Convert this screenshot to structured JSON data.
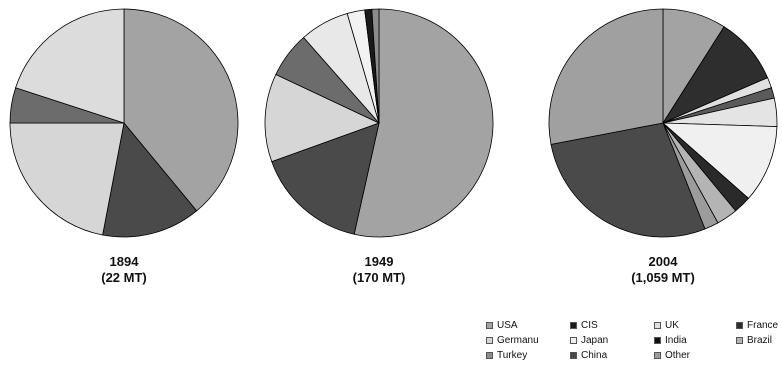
{
  "chart_data": [
    {
      "type": "pie",
      "year": "1894",
      "total": "(22 MT)",
      "slices": [
        {
          "category": "USA",
          "value": 39,
          "color": "#a3a3a3"
        },
        {
          "category": "China",
          "value": 14,
          "color": "#4a4a4a"
        },
        {
          "category": "Germanu",
          "value": 22,
          "color": "#d6d6d6"
        },
        {
          "category": "Turkey",
          "value": 5,
          "color": "#6c6c6c"
        },
        {
          "category": "Japan",
          "value": 20,
          "color": "#dcdcdc"
        }
      ]
    },
    {
      "type": "pie",
      "year": "1949",
      "total": "(170 MT)",
      "slices": [
        {
          "category": "USA",
          "value": 53.5,
          "color": "#a3a3a3"
        },
        {
          "category": "China",
          "value": 16,
          "color": "#4a4a4a"
        },
        {
          "category": "Germanu",
          "value": 12.5,
          "color": "#d6d6d6"
        },
        {
          "category": "Turkey",
          "value": 6.5,
          "color": "#6c6c6c"
        },
        {
          "category": "Japan",
          "value": 7,
          "color": "#e8e8e8"
        },
        {
          "category": "UK",
          "value": 2.5,
          "color": "#f2f2f2"
        },
        {
          "category": "CIS",
          "value": 1,
          "color": "#1a1a1a"
        },
        {
          "category": "Other",
          "value": 1,
          "color": "#8c8c8c"
        }
      ]
    },
    {
      "type": "pie",
      "year": "2004",
      "total": "(1,059 MT)",
      "slices": [
        {
          "category": "USA",
          "value": 9,
          "color": "#a3a3a3"
        },
        {
          "category": "CIS",
          "value": 9.5,
          "color": "#2e2e2e"
        },
        {
          "category": "UK",
          "value": 1.5,
          "color": "#e0e0e0"
        },
        {
          "category": "France",
          "value": 1.5,
          "color": "#5a5a5a"
        },
        {
          "category": "Germanu",
          "value": 4,
          "color": "#e4e4e4"
        },
        {
          "category": "Japan",
          "value": 11,
          "color": "#f0f0f0"
        },
        {
          "category": "India",
          "value": 2.5,
          "color": "#2a2a2a"
        },
        {
          "category": "Brazil",
          "value": 3,
          "color": "#b4b4b4"
        },
        {
          "category": "Other",
          "value": 2,
          "color": "#9c9c9c"
        },
        {
          "category": "China",
          "value": 28,
          "color": "#4a4a4a"
        },
        {
          "category": "Turkey",
          "value": 28,
          "color": "#a0a0a0"
        }
      ]
    }
  ],
  "legend": [
    {
      "label": "USA",
      "color": "#a3a3a3"
    },
    {
      "label": "CIS",
      "color": "#1a1a1a"
    },
    {
      "label": "UK",
      "color": "#e0e0e0"
    },
    {
      "label": "France",
      "color": "#2e2e2e"
    },
    {
      "label": "Germanu",
      "color": "#d6d6d6"
    },
    {
      "label": "Japan",
      "color": "#f0f0f0"
    },
    {
      "label": "India",
      "color": "#0f0f0f"
    },
    {
      "label": "Brazil",
      "color": "#b4b4b4"
    },
    {
      "label": "Turkey",
      "color": "#8c8c8c"
    },
    {
      "label": "China",
      "color": "#4a4a4a"
    },
    {
      "label": "Other",
      "color": "#9c9c9c"
    }
  ]
}
